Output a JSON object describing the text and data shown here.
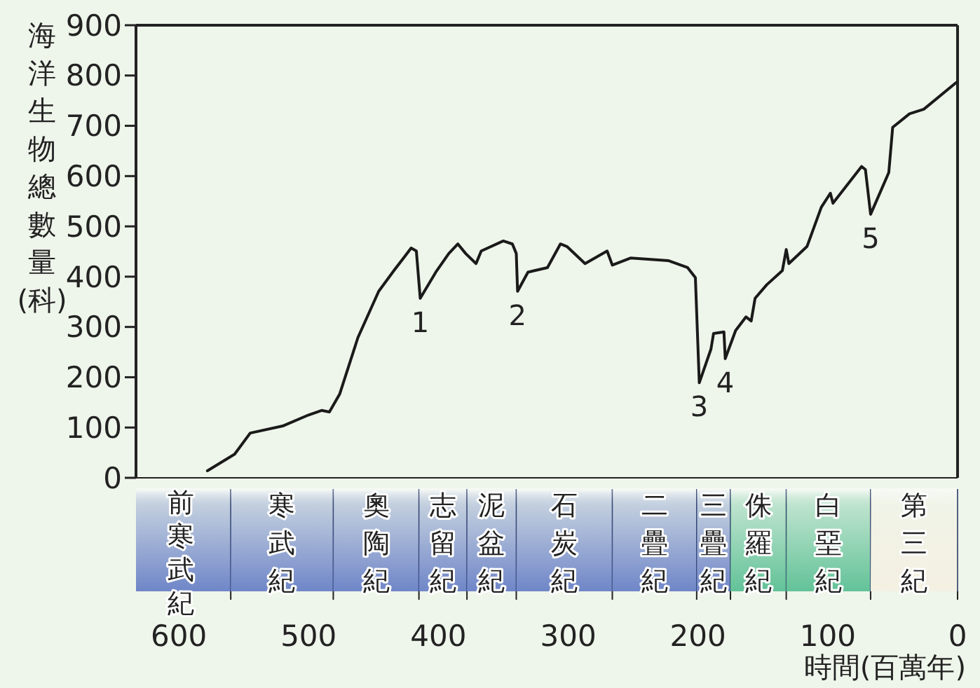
{
  "chart_data": {
    "type": "line",
    "xlabel": "時間(百萬年)",
    "ylabel": "海洋生物總數量(科)",
    "xlim": [
      633,
      0
    ],
    "xticks": [
      600,
      500,
      400,
      300,
      200,
      100,
      0
    ],
    "ylim": [
      0,
      900
    ],
    "yticks": [
      0,
      100,
      200,
      300,
      400,
      500,
      600,
      700,
      800,
      900
    ],
    "grid": false,
    "marker": "none",
    "line_style": "solid",
    "series": [
      {
        "color": "#1a1a1a",
        "x": [
          578,
          557,
          545,
          520,
          500,
          490,
          484,
          476,
          462,
          446,
          434,
          426,
          421,
          417,
          414,
          402,
          392,
          385,
          379,
          371,
          367,
          350,
          343,
          340,
          339,
          331,
          316,
          306,
          301,
          287,
          270,
          266,
          252,
          223,
          208,
          202,
          199,
          190,
          188,
          180,
          179,
          171,
          163,
          159,
          156,
          147,
          135,
          132,
          130,
          116,
          105,
          98,
          96,
          74,
          71,
          67,
          53,
          50,
          37,
          26,
          1
        ],
        "values": [
          14,
          47,
          89,
          103,
          125,
          134,
          131,
          167,
          279,
          371,
          413,
          440,
          457,
          451,
          357,
          409,
          446,
          465,
          446,
          426,
          451,
          471,
          465,
          446,
          371,
          409,
          418,
          465,
          460,
          426,
          451,
          423,
          437,
          432,
          418,
          398,
          189,
          256,
          287,
          290,
          237,
          293,
          320,
          312,
          357,
          384,
          412,
          454,
          426,
          460,
          538,
          566,
          546,
          619,
          613,
          524,
          607,
          697,
          724,
          733,
          786
        ]
      }
    ],
    "annotations": [
      {
        "text": "1",
        "x": 414,
        "y": 357
      },
      {
        "text": "2",
        "x": 339,
        "y": 371
      },
      {
        "text": "3",
        "x": 199,
        "y": 189
      },
      {
        "text": "4",
        "x": 179,
        "y": 237
      },
      {
        "text": "5",
        "x": 67,
        "y": 524
      }
    ],
    "bands": [
      {
        "axis": "x",
        "from": 633,
        "to": 560,
        "label": "前寒武紀",
        "color": "#6f86c8"
      },
      {
        "axis": "x",
        "from": 560,
        "to": 481,
        "label": "寒武紀",
        "color": "#6f86c8"
      },
      {
        "axis": "x",
        "from": 481,
        "to": 415,
        "label": "奧陶紀",
        "color": "#6f86c8"
      },
      {
        "axis": "x",
        "from": 415,
        "to": 378,
        "label": "志留紀",
        "color": "#6f86c8"
      },
      {
        "axis": "x",
        "from": 378,
        "to": 340,
        "label": "泥盆紀",
        "color": "#6f86c8"
      },
      {
        "axis": "x",
        "from": 340,
        "to": 266,
        "label": "石炭紀",
        "color": "#6f86c8"
      },
      {
        "axis": "x",
        "from": 266,
        "to": 201,
        "label": "二疊紀",
        "color": "#6f86c8"
      },
      {
        "axis": "x",
        "from": 201,
        "to": 175,
        "label": "三疊紀",
        "color": "#6f86c8"
      },
      {
        "axis": "x",
        "from": 175,
        "to": 132,
        "label": "侏羅紀",
        "color": "#62c298"
      },
      {
        "axis": "x",
        "from": 132,
        "to": 67,
        "label": "白堊紀",
        "color": "#62c298"
      },
      {
        "axis": "x",
        "from": 67,
        "to": 0,
        "label": "第三紀",
        "color": "#f4f0e2"
      }
    ]
  }
}
